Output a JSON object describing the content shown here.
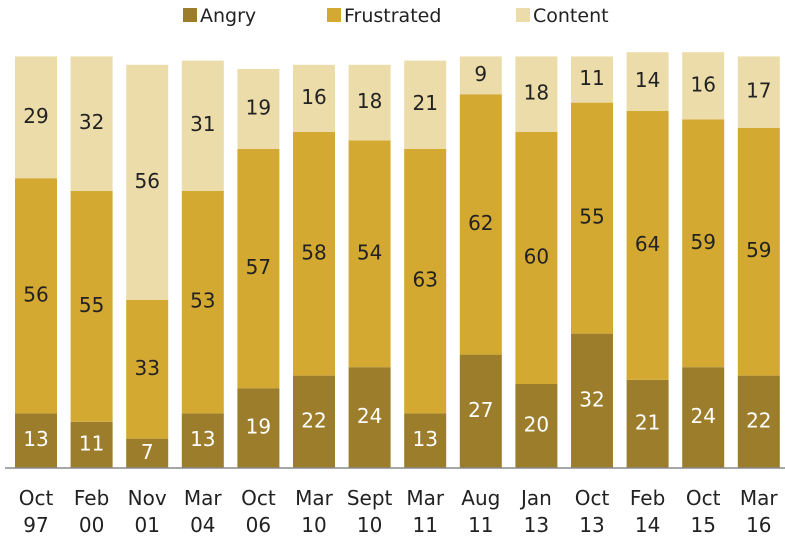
{
  "chart_data": {
    "type": "bar",
    "stacked": true,
    "categories": [
      [
        "Oct",
        "97"
      ],
      [
        "Feb",
        "00"
      ],
      [
        "Nov",
        "01"
      ],
      [
        "Mar",
        "04"
      ],
      [
        "Oct",
        "06"
      ],
      [
        "Mar",
        "10"
      ],
      [
        "Sept",
        "10"
      ],
      [
        "Mar",
        "11"
      ],
      [
        "Aug",
        "11"
      ],
      [
        "Jan",
        "13"
      ],
      [
        "Oct",
        "13"
      ],
      [
        "Feb",
        "14"
      ],
      [
        "Oct",
        "15"
      ],
      [
        "Mar",
        "16"
      ]
    ],
    "series": [
      {
        "name": "Angry",
        "color": "#9c7d2b",
        "label_color": "#ffffff",
        "values": [
          13,
          11,
          7,
          13,
          19,
          22,
          24,
          13,
          27,
          20,
          32,
          21,
          24,
          22
        ]
      },
      {
        "name": "Frustrated",
        "color": "#d4a932",
        "label_color": "#222222",
        "values": [
          56,
          55,
          33,
          53,
          57,
          58,
          54,
          63,
          62,
          60,
          55,
          64,
          59,
          59
        ]
      },
      {
        "name": "Content",
        "color": "#ecdcaa",
        "label_color": "#222222",
        "values": [
          29,
          32,
          56,
          31,
          19,
          16,
          18,
          21,
          9,
          18,
          11,
          14,
          16,
          17
        ]
      }
    ],
    "legend_position": "top-center",
    "grid": false,
    "ylim": [
      0,
      100
    ]
  }
}
